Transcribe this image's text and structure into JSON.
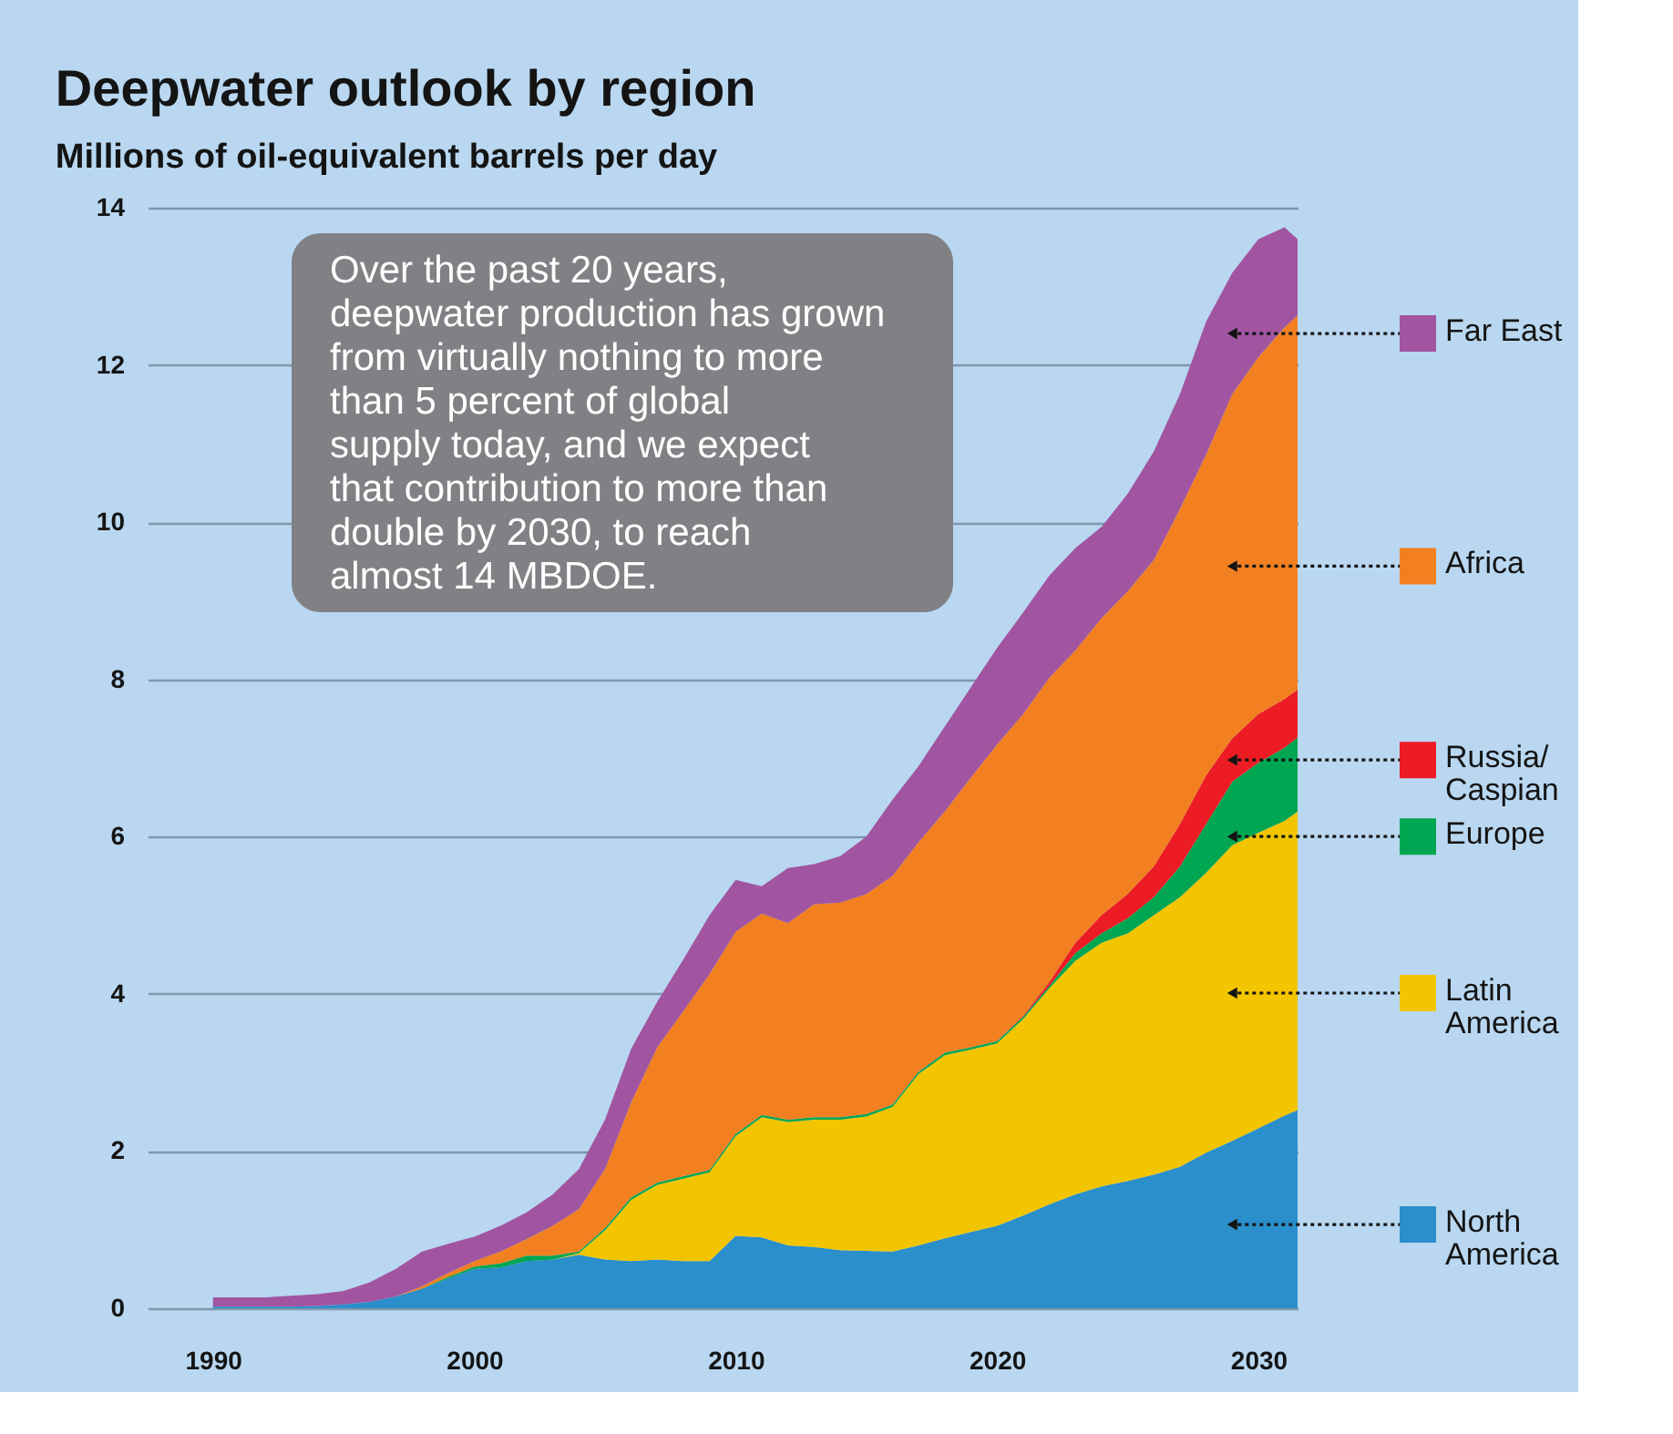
{
  "chart_data": {
    "type": "area",
    "stacked": true,
    "title": "Deepwater outlook by region",
    "subtitle": "Millions of oil-equivalent barrels per day",
    "x": [
      1990,
      1991,
      1992,
      1993,
      1994,
      1995,
      1996,
      1997,
      1998,
      1999,
      2000,
      2001,
      2002,
      2003,
      2004,
      2005,
      2006,
      2007,
      2008,
      2009,
      2010,
      2011,
      2012,
      2013,
      2014,
      2015,
      2016,
      2017,
      2018,
      2019,
      2020,
      2021,
      2022,
      2023,
      2024,
      2025,
      2026,
      2027,
      2028,
      2029,
      2030,
      2031,
      2031.5
    ],
    "xlim": [
      1987.5,
      2031.5
    ],
    "xticks": [
      1990,
      2000,
      2010,
      2020,
      2030
    ],
    "ylim": [
      0,
      14
    ],
    "yticks": [
      0,
      2,
      4,
      6,
      8,
      10,
      12,
      14
    ],
    "grid": "y",
    "legend": "right",
    "series": [
      {
        "name": "North America",
        "color": "#2a8fca",
        "values": [
          0.02,
          0.02,
          0.02,
          0.02,
          0.03,
          0.05,
          0.08,
          0.15,
          0.25,
          0.38,
          0.5,
          0.52,
          0.6,
          0.62,
          0.68,
          0.62,
          0.6,
          0.62,
          0.6,
          0.6,
          0.92,
          0.9,
          0.8,
          0.78,
          0.74,
          0.73,
          0.72,
          0.8,
          0.89,
          0.97,
          1.05,
          1.18,
          1.32,
          1.45,
          1.55,
          1.62,
          1.7,
          1.8,
          1.98,
          2.13,
          2.29,
          2.45,
          2.52
        ]
      },
      {
        "name": "Latin America",
        "color": "#f2c500",
        "values": [
          0,
          0,
          0,
          0,
          0,
          0,
          0,
          0,
          0,
          0,
          0,
          0,
          0,
          0,
          0.02,
          0.37,
          0.78,
          0.95,
          1.05,
          1.13,
          1.27,
          1.53,
          1.57,
          1.62,
          1.66,
          1.71,
          1.84,
          2.18,
          2.33,
          2.32,
          2.32,
          2.5,
          2.75,
          2.97,
          3.1,
          3.15,
          3.3,
          3.43,
          3.56,
          3.76,
          3.76,
          3.75,
          3.8
        ]
      },
      {
        "name": "Europe",
        "color": "#00a651",
        "values": [
          0,
          0,
          0,
          0,
          0,
          0,
          0,
          0,
          0,
          0.02,
          0.03,
          0.05,
          0.07,
          0.05,
          0.02,
          0.03,
          0.03,
          0.03,
          0.03,
          0.03,
          0.03,
          0.03,
          0.03,
          0.03,
          0.03,
          0.03,
          0.03,
          0.03,
          0.03,
          0.03,
          0.03,
          0.03,
          0.03,
          0.1,
          0.12,
          0.19,
          0.23,
          0.39,
          0.62,
          0.81,
          0.89,
          0.93,
          0.94
        ]
      },
      {
        "name": "Russia/Caspian",
        "color": "#ed1c24",
        "values": [
          0,
          0,
          0,
          0,
          0,
          0,
          0,
          0,
          0,
          0,
          0,
          0,
          0,
          0,
          0,
          0,
          0,
          0,
          0,
          0,
          0,
          0,
          0,
          0,
          0,
          0,
          0,
          0,
          0,
          0,
          0,
          0.01,
          0.05,
          0.13,
          0.23,
          0.31,
          0.39,
          0.54,
          0.62,
          0.55,
          0.62,
          0.62,
          0.61
        ]
      },
      {
        "name": "Africa",
        "color": "#f28021",
        "values": [
          0,
          0,
          0,
          0,
          0,
          0,
          0,
          0,
          0.03,
          0.05,
          0.07,
          0.15,
          0.21,
          0.38,
          0.54,
          0.75,
          1.21,
          1.72,
          2.1,
          2.49,
          2.57,
          2.56,
          2.5,
          2.71,
          2.73,
          2.8,
          2.91,
          2.92,
          3.07,
          3.43,
          3.77,
          3.84,
          3.87,
          3.72,
          3.78,
          3.85,
          3.9,
          4.01,
          4.08,
          4.38,
          4.54,
          4.73,
          4.76
        ]
      },
      {
        "name": "Far East",
        "color": "#a155a1",
        "values": [
          0.12,
          0.12,
          0.12,
          0.14,
          0.15,
          0.17,
          0.25,
          0.35,
          0.44,
          0.37,
          0.31,
          0.33,
          0.34,
          0.4,
          0.51,
          0.63,
          0.68,
          0.58,
          0.66,
          0.75,
          0.66,
          0.35,
          0.7,
          0.51,
          0.59,
          0.73,
          0.97,
          0.97,
          1.08,
          1.15,
          1.23,
          1.29,
          1.3,
          1.3,
          1.16,
          1.24,
          1.38,
          1.46,
          1.69,
          1.54,
          1.5,
          1.27,
          0.97
        ]
      }
    ],
    "annotations": [
      "Over the past 20 years, deepwater production has grown from virtually nothing to more than 5 percent of global supply today, and we expect that contribution to more than double by 2030, to reach almost 14 MBDOE."
    ]
  }
}
